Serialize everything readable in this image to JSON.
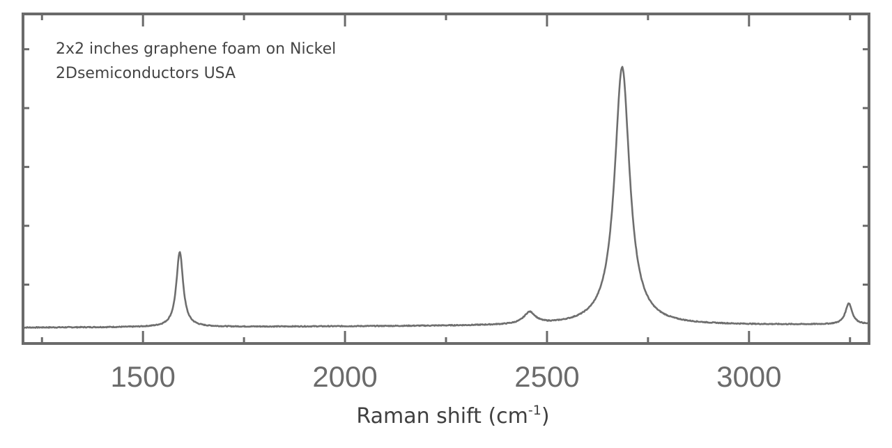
{
  "chart_data": {
    "type": "line",
    "title": "",
    "annotations": [
      "2x2 inches graphene foam on Nickel",
      "2Dsemiconductors USA"
    ],
    "xlabel": "Raman shift (cm",
    "xlabel_sup": "-1",
    "xlabel_end": ")",
    "ylabel": "",
    "xlim": [
      1203,
      3297
    ],
    "ylim": [
      0,
      5.6
    ],
    "x_ticks": [
      1500,
      2000,
      2500,
      3000
    ],
    "x_tick_labels": [
      "1500",
      "2000",
      "2500",
      "3000"
    ],
    "x_minor_ticks": [
      1250,
      1750,
      2250,
      2750,
      3250
    ],
    "y_ticks": [
      1,
      2,
      3,
      4,
      5
    ],
    "y_tick_labels_shown": false,
    "grid": false,
    "line_color": "#6e6e6e",
    "frame_color": "#6a6a6a",
    "series": [
      {
        "baseline": [
          [
            1203,
            0.27
          ],
          [
            3297,
            0.32
          ]
        ],
        "peaks": [
          {
            "position": 1591,
            "intensity": 1.55,
            "fwhm": 20
          },
          {
            "position": 2457,
            "intensity": 0.47,
            "fwhm": 35
          },
          {
            "position": 2686,
            "intensity": 4.66,
            "fwhm": 45
          },
          {
            "position": 3247,
            "intensity": 0.63,
            "fwhm": 20
          }
        ]
      }
    ]
  }
}
